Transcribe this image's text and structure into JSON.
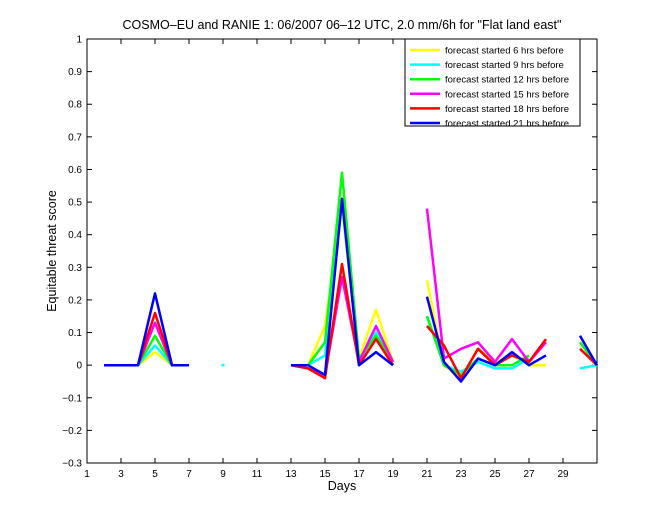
{
  "chart_data": {
    "type": "line",
    "title": "COSMO–EU and RANIE 1: 06/2007 06–12 UTC, 2.0 mm/6h for \"Flat land east\"",
    "xlabel": "Days",
    "ylabel": "Equitable threat score",
    "xlim": [
      1,
      31
    ],
    "ylim": [
      -0.3,
      1
    ],
    "xticks": [
      1,
      3,
      5,
      7,
      9,
      11,
      13,
      15,
      17,
      19,
      21,
      23,
      25,
      27,
      29
    ],
    "yticks": [
      -0.3,
      -0.2,
      -0.1,
      0,
      0.1,
      0.2,
      0.3,
      0.4,
      0.5,
      0.6,
      0.7,
      0.8,
      0.9,
      1
    ],
    "ytick_labels": [
      "−0.3",
      "−0.2",
      "−0.1",
      "0",
      "0.1",
      "0.2",
      "0.3",
      "0.4",
      "0.5",
      "0.6",
      "0.7",
      "0.8",
      "0.9",
      "1"
    ],
    "legend_position": "top-right",
    "grid": false,
    "series": [
      {
        "name": "forecast started 6 hrs before",
        "color": "#ffff00",
        "segments": [
          [
            [
              2,
              0
            ],
            [
              3,
              0
            ],
            [
              4,
              0
            ],
            [
              5,
              0.04
            ],
            [
              6,
              0
            ],
            [
              7,
              0
            ]
          ],
          [
            [
              13,
              0
            ],
            [
              14,
              0
            ],
            [
              15,
              0.12
            ],
            [
              16,
              0.48
            ],
            [
              17,
              0.02
            ],
            [
              18,
              0.17
            ],
            [
              19,
              0.01
            ]
          ],
          [
            [
              21,
              0.26
            ],
            [
              22,
              0
            ],
            [
              23,
              -0.04
            ],
            [
              24,
              0.05
            ],
            [
              25,
              0.01
            ],
            [
              26,
              0.03
            ],
            [
              27,
              0
            ],
            [
              28,
              0
            ]
          ]
        ]
      },
      {
        "name": "forecast started 9 hrs before",
        "color": "#00ffff",
        "segments": [
          [
            [
              2,
              0
            ],
            [
              3,
              0
            ],
            [
              4,
              0
            ],
            [
              5,
              0.06
            ],
            [
              6,
              0
            ],
            [
              7,
              0
            ]
          ],
          [
            [
              9,
              0
            ]
          ],
          [
            [
              13,
              0
            ],
            [
              14,
              0
            ],
            [
              15,
              0.03
            ],
            [
              16,
              0.5
            ],
            [
              17,
              0.01
            ],
            [
              18,
              0.1
            ],
            [
              19,
              0.01
            ]
          ],
          [
            [
              21,
              0.15
            ],
            [
              22,
              0
            ],
            [
              23,
              -0.02
            ],
            [
              24,
              0.01
            ],
            [
              25,
              -0.01
            ],
            [
              26,
              -0.01
            ],
            [
              27,
              0.02
            ]
          ],
          [
            [
              30,
              -0.01
            ],
            [
              31,
              0
            ]
          ]
        ]
      },
      {
        "name": "forecast started 12 hrs before",
        "color": "#00ff00",
        "segments": [
          [
            [
              2,
              0
            ],
            [
              3,
              0
            ],
            [
              4,
              0
            ],
            [
              5,
              0.09
            ],
            [
              6,
              0
            ],
            [
              7,
              0
            ]
          ],
          [
            [
              13,
              0
            ],
            [
              14,
              0
            ],
            [
              15,
              0.07
            ],
            [
              16,
              0.59
            ],
            [
              17,
              0.02
            ],
            [
              18,
              0.09
            ],
            [
              19,
              0.01
            ]
          ],
          [
            [
              21,
              0.15
            ],
            [
              22,
              0
            ],
            [
              23,
              -0.03
            ],
            [
              24,
              0.02
            ],
            [
              25,
              0
            ],
            [
              26,
              0
            ],
            [
              27,
              0.03
            ]
          ],
          [
            [
              30,
              0.07
            ],
            [
              31,
              0
            ]
          ]
        ]
      },
      {
        "name": "forecast started 15 hrs before",
        "color": "#ff00ff",
        "segments": [
          [
            [
              2,
              0
            ],
            [
              3,
              0
            ],
            [
              4,
              0
            ],
            [
              5,
              0.13
            ],
            [
              6,
              0
            ],
            [
              7,
              0
            ]
          ],
          [
            [
              13,
              0
            ],
            [
              14,
              -0.01
            ],
            [
              15,
              -0.03
            ],
            [
              16,
              0.27
            ],
            [
              17,
              0.01
            ],
            [
              18,
              0.12
            ],
            [
              19,
              0.01
            ]
          ],
          [
            [
              21,
              0.48
            ],
            [
              22,
              0.02
            ],
            [
              23,
              0.05
            ],
            [
              24,
              0.07
            ],
            [
              25,
              0.01
            ],
            [
              26,
              0.08
            ],
            [
              27,
              0.01
            ],
            [
              28,
              0.07
            ]
          ]
        ]
      },
      {
        "name": "forecast started 18 hrs before",
        "color": "#ff0000",
        "segments": [
          [
            [
              2,
              0
            ],
            [
              3,
              0
            ],
            [
              4,
              0
            ],
            [
              5,
              0.16
            ],
            [
              6,
              0
            ],
            [
              7,
              0
            ]
          ],
          [
            [
              13,
              0
            ],
            [
              14,
              -0.01
            ],
            [
              15,
              -0.04
            ],
            [
              16,
              0.31
            ],
            [
              17,
              0
            ],
            [
              18,
              0.08
            ],
            [
              19,
              0
            ]
          ],
          [
            [
              21,
              0.12
            ],
            [
              22,
              0.06
            ],
            [
              23,
              -0.04
            ],
            [
              24,
              0.05
            ],
            [
              25,
              0
            ],
            [
              26,
              0.03
            ],
            [
              27,
              0.01
            ],
            [
              28,
              0.08
            ]
          ],
          [
            [
              30,
              0.05
            ],
            [
              31,
              0
            ]
          ]
        ]
      },
      {
        "name": "forecast started 21 hrs before",
        "color": "#0000ff",
        "segments": [
          [
            [
              2,
              0
            ],
            [
              3,
              0
            ],
            [
              4,
              0
            ],
            [
              5,
              0.22
            ],
            [
              6,
              0
            ],
            [
              7,
              0
            ]
          ],
          [
            [
              13,
              0
            ],
            [
              14,
              0
            ],
            [
              15,
              -0.03
            ],
            [
              16,
              0.51
            ],
            [
              17,
              0
            ],
            [
              18,
              0.04
            ],
            [
              19,
              0
            ]
          ],
          [
            [
              21,
              0.21
            ],
            [
              22,
              0.01
            ],
            [
              23,
              -0.05
            ],
            [
              24,
              0.02
            ],
            [
              25,
              0
            ],
            [
              26,
              0.04
            ],
            [
              27,
              0
            ],
            [
              28,
              0.03
            ]
          ],
          [
            [
              30,
              0.09
            ],
            [
              31,
              0
            ]
          ]
        ]
      }
    ]
  }
}
